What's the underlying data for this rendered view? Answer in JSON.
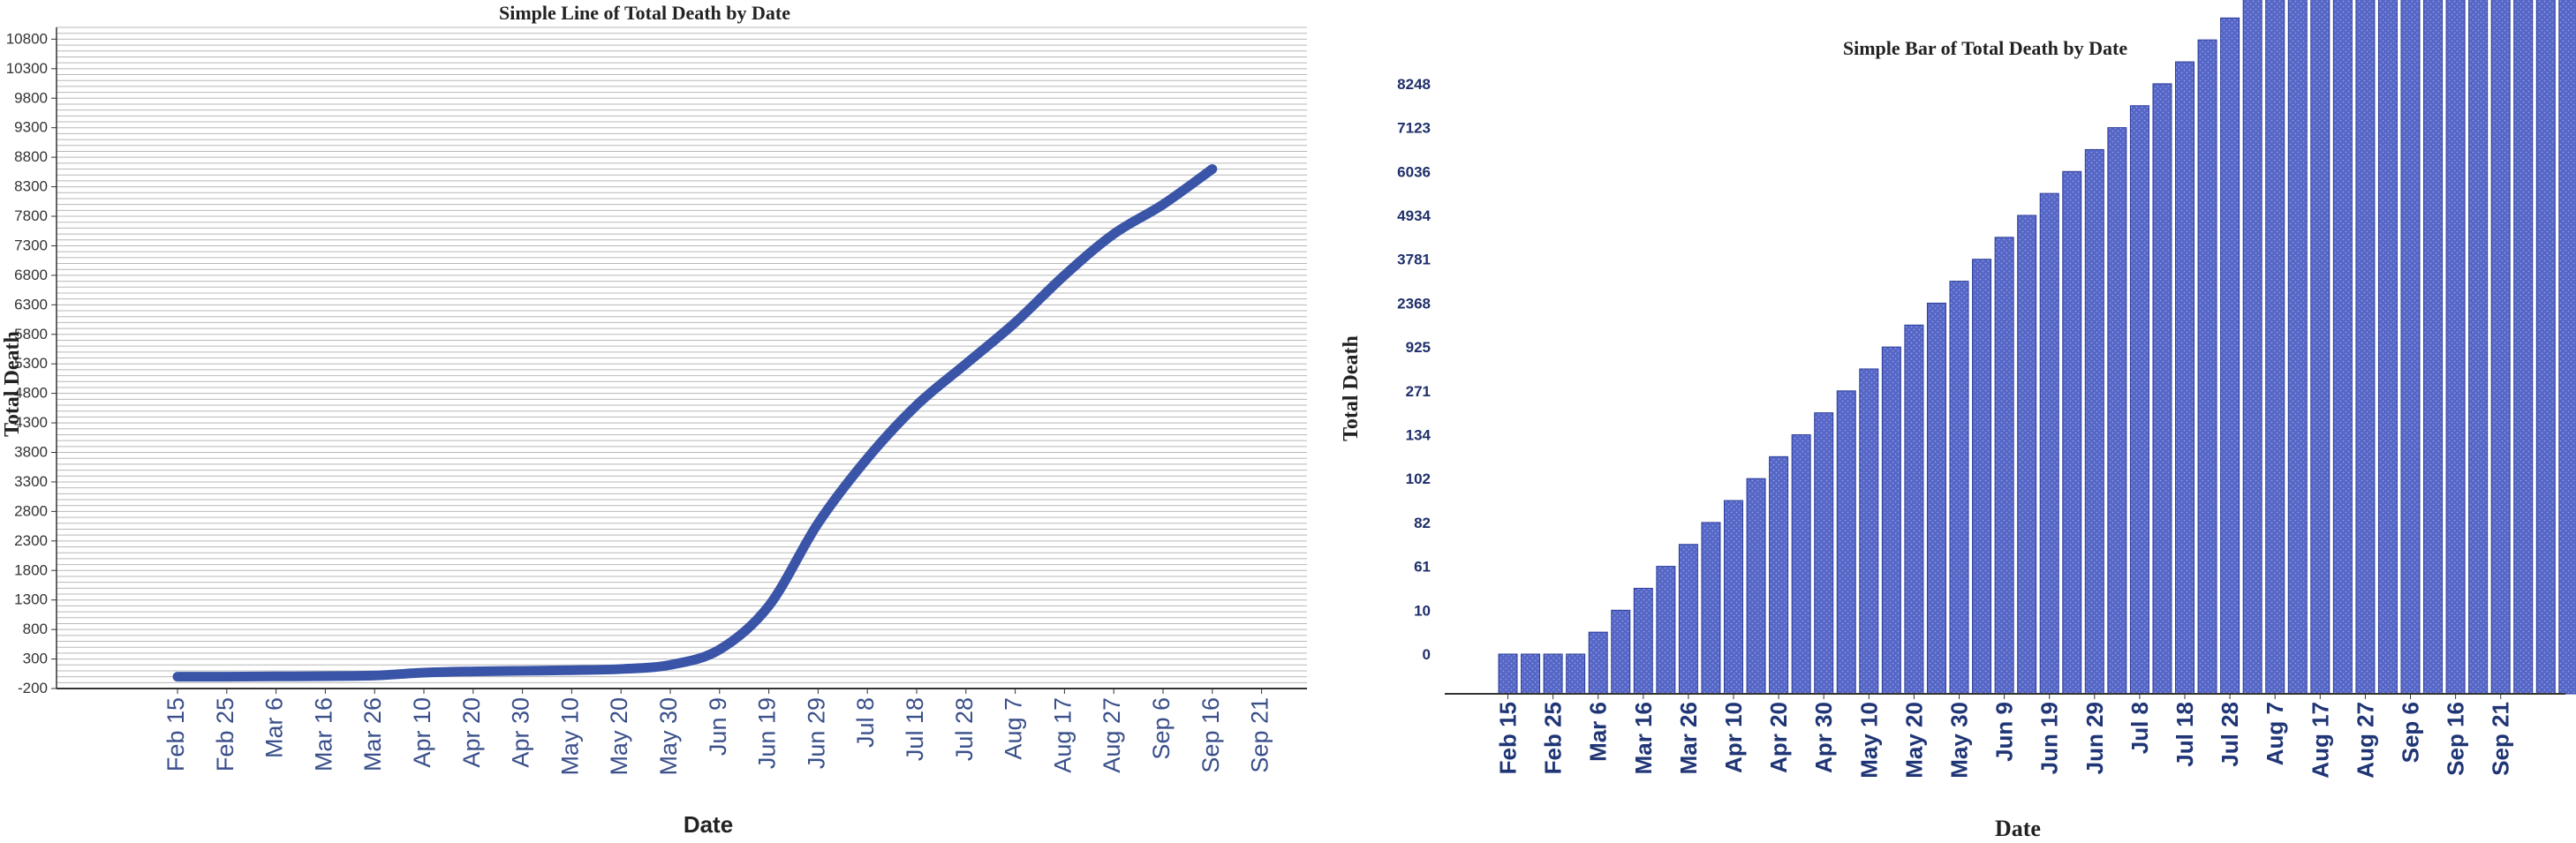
{
  "colors": {
    "line": "#3a55a8",
    "bar_fill": "#5566c6",
    "bar_stroke": "#2c3d9a",
    "grid": "#b8b8b8",
    "axis": "#333333",
    "tick_text_left": "#333333",
    "date_text_left": "#3a4f8a",
    "date_text_right": "#1f3575",
    "value_text_right": "#1f2f6a"
  },
  "chart_data": [
    {
      "type": "line",
      "title": "Simple Line of Total Death by Date",
      "xlabel": "Date",
      "ylabel": "Total Death",
      "grid": true,
      "legend": "none",
      "ylim": [
        -200,
        11000
      ],
      "y_ticks": [
        -200,
        300,
        800,
        1300,
        1800,
        2300,
        2800,
        3300,
        3800,
        4300,
        4800,
        5300,
        5800,
        6300,
        6800,
        7300,
        7800,
        8300,
        8800,
        9300,
        9800,
        10300,
        10800
      ],
      "y_tick_labels": [
        "-200",
        "300",
        "800",
        "1300",
        "1800",
        "2300",
        "2800",
        "3300",
        "3800",
        "4300",
        "4800",
        "5300",
        "5800",
        "6300",
        "6800",
        "7300",
        "7800",
        "8300",
        "8800",
        "9300",
        "9800",
        "10300",
        "10800"
      ],
      "categories": [
        "Feb 15",
        "Feb 25",
        "Mar 6",
        "Mar 16",
        "Mar 26",
        "Apr 10",
        "Apr 20",
        "Apr 30",
        "May 10",
        "May 20",
        "May 30",
        "Jun 9",
        "Jun 19",
        "Jun 29",
        "Jul 8",
        "Jul 18",
        "Jul 28",
        "Aug 7",
        "Aug 17",
        "Aug 27",
        "Sep 6",
        "Sep 16",
        "Sep 21"
      ],
      "series": [
        {
          "values": [
            0,
            0,
            5,
            10,
            20,
            70,
            90,
            100,
            110,
            130,
            200,
            460,
            1200,
            2600,
            3700,
            4600,
            5300,
            6000,
            6800,
            7500,
            8000,
            8600,
            null
          ]
        }
      ]
    },
    {
      "type": "bar",
      "title": "Simple Bar of Total Death by Date",
      "xlabel": "Date",
      "ylabel": "Total Death",
      "grid": false,
      "legend": "none",
      "y_scale": "categorical",
      "y_ticks": [
        "0",
        "10",
        "61",
        "82",
        "102",
        "134",
        "271",
        "925",
        "2368",
        "3781",
        "4934",
        "6036",
        "7123",
        "8248"
      ],
      "x_tick_labels": [
        "Feb 15",
        "Feb 25",
        "Mar 6",
        "Mar 16",
        "Mar 26",
        "Apr 10",
        "Apr 20",
        "Apr 30",
        "May 10",
        "May 20",
        "May 30",
        "Jun 9",
        "Jun 19",
        "Jun 29",
        "Jul 8",
        "Jul 18",
        "Jul 28",
        "Aug 7",
        "Aug 17",
        "Aug 27",
        "Sep 6",
        "Sep 16",
        "Sep 21"
      ],
      "bar_tick_levels": [
        0,
        0,
        0,
        0,
        0.5,
        1,
        1.5,
        2,
        2.5,
        3,
        3.5,
        4,
        4.5,
        5,
        5.5,
        6,
        6.5,
        7,
        7.5,
        8,
        8.5,
        9,
        9.5,
        10,
        10.5,
        11,
        11.5,
        12,
        12.5,
        13,
        13.5,
        14,
        14.5,
        15,
        15.5,
        16,
        16.5,
        17,
        17.5,
        18,
        18.5,
        19,
        19.5,
        20,
        20.5,
        21,
        21.5,
        22,
        22.5
      ]
    }
  ]
}
